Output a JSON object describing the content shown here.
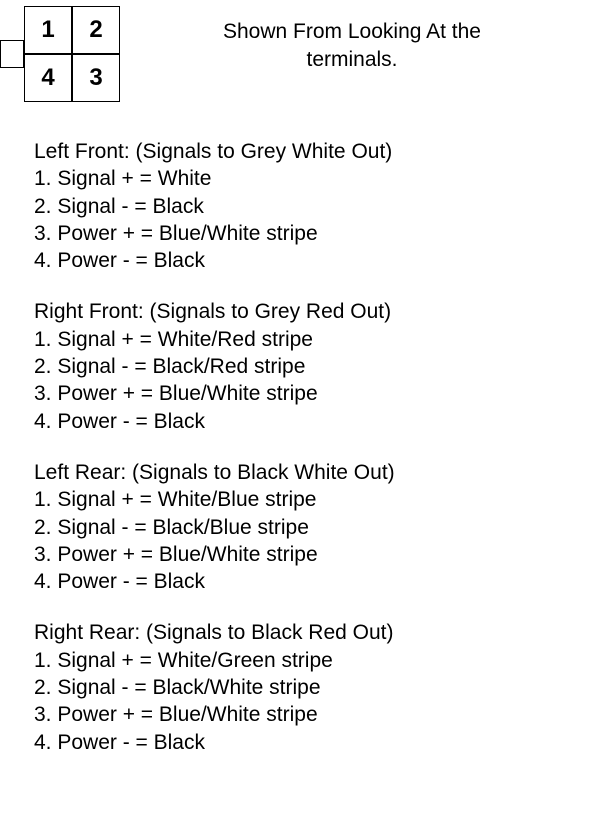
{
  "connector": {
    "cells": [
      "1",
      "2",
      "4",
      "3"
    ]
  },
  "caption": {
    "line1": "Shown From Looking At the",
    "line2": "terminals."
  },
  "sections": [
    {
      "title": "Left Front: (Signals to Grey White Out)",
      "lines": [
        "1. Signal + = White",
        "2. Signal - = Black",
        "3. Power + = Blue/White stripe",
        "4. Power - = Black"
      ]
    },
    {
      "title": "Right Front: (Signals to Grey Red Out)",
      "lines": [
        "1. Signal + = White/Red stripe",
        "2. Signal - = Black/Red stripe",
        "3. Power + = Blue/White stripe",
        "4. Power - = Black"
      ]
    },
    {
      "title": "Left Rear: (Signals to Black White Out)",
      "lines": [
        "1. Signal + = White/Blue stripe",
        "2. Signal - = Black/Blue stripe",
        "3. Power + = Blue/White stripe",
        "4. Power - = Black"
      ]
    },
    {
      "title": "Right Rear: (Signals to Black Red Out)",
      "lines": [
        "1. Signal + = White/Green stripe",
        "2. Signal - = Black/White stripe",
        "3. Power + = Blue/White stripe",
        "4. Power - = Black"
      ]
    }
  ]
}
